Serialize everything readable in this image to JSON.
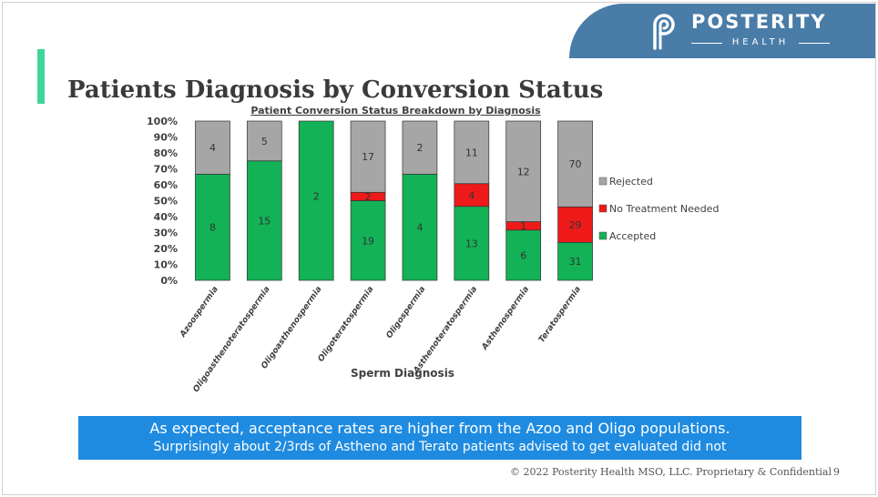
{
  "logo": {
    "name": "POSTERITY",
    "sub": "HEALTH"
  },
  "slide": {
    "title": "Patients Diagnosis by Conversion Status",
    "callout_line1": "As expected, acceptance rates are higher from the Azoo and Oligo populations.",
    "callout_line2": "Surprisingly about 2/3rds of Astheno and Terato patients advised to get evaluated did not",
    "footer": "© 2022 Posterity Health MSO, LLC. Proprietary & Confidential",
    "page": "9"
  },
  "colors": {
    "accepted": "#13b256",
    "no_treatment": "#ee1a1a",
    "rejected": "#a6a6a6",
    "accent": "#3fd69b",
    "brand": "#4a7ca8",
    "callout": "#1f8be0"
  },
  "chart_data": {
    "type": "bar",
    "stacked": "percent",
    "title": "Patient Conversion Status Breakdown by Diagnosis",
    "xlabel": "Sperm Diagnosis",
    "ylabel": "",
    "ylim": [
      0,
      100
    ],
    "yticks": [
      "0%",
      "10%",
      "20%",
      "30%",
      "40%",
      "50%",
      "60%",
      "70%",
      "80%",
      "90%",
      "100%"
    ],
    "legend_position": "right",
    "categories": [
      "Azoospermia",
      "Oligoasthenoteratospermia",
      "Oligoasthenospermia",
      "Oligoteratospermia",
      "Oligospermia",
      "Asthenoteratospermia",
      "Asthenospermia",
      "Teratospermia"
    ],
    "series": [
      {
        "name": "Accepted",
        "values": [
          8,
          15,
          2,
          19,
          4,
          13,
          6,
          31
        ],
        "labels": [
          "8",
          "15",
          "2",
          "19",
          "4",
          "13",
          "6",
          "31"
        ]
      },
      {
        "name": "No Treatment Needed",
        "values": [
          0,
          0,
          0,
          2,
          0,
          4,
          1,
          29
        ],
        "labels": [
          "",
          "",
          "",
          "2",
          "",
          "4",
          "1",
          "29"
        ]
      },
      {
        "name": "Rejected",
        "values": [
          4,
          5,
          0,
          17,
          2,
          11,
          12,
          70
        ],
        "labels": [
          "4",
          "5",
          "",
          "17",
          "2",
          "11",
          "12",
          "70"
        ]
      }
    ]
  }
}
